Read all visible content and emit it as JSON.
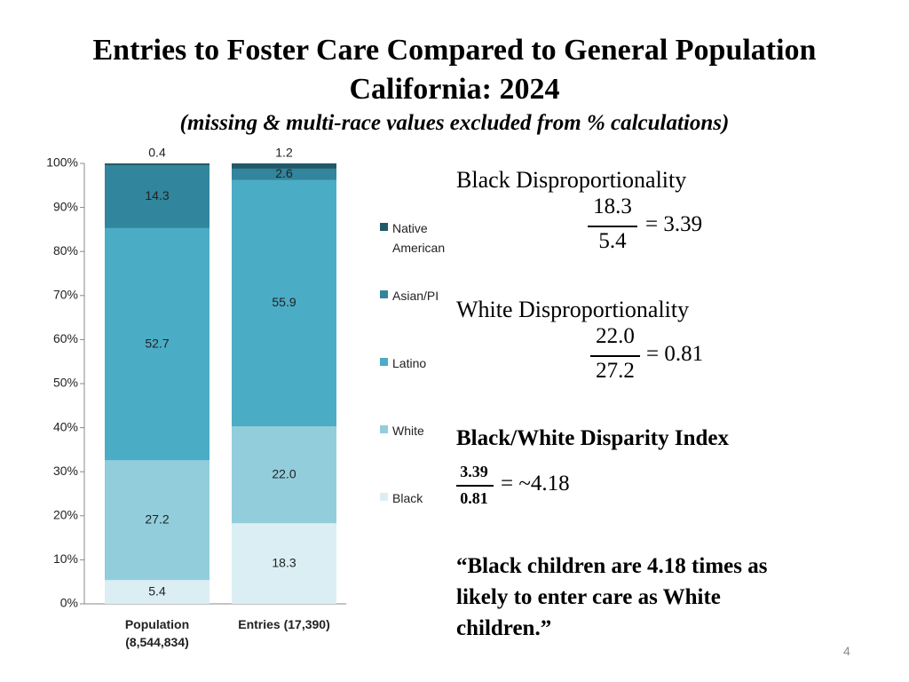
{
  "chart_data": {
    "type": "stacked_bar",
    "title": "Entries to Foster Care Compared to General Population",
    "subtitle": "California: 2024",
    "note": "(missing & multi-race values excluded from % calculations)",
    "categories": [
      "Population (8,544,834)",
      "Entries (17,390)"
    ],
    "series": [
      {
        "name": "Black",
        "color": "#dbeef4",
        "values": [
          5.4,
          18.3
        ]
      },
      {
        "name": "White",
        "color": "#92cddc",
        "values": [
          27.2,
          22.0
        ],
        "value_labels": [
          "27.2",
          "22.0"
        ]
      },
      {
        "name": "Latino",
        "color": "#4bacc6",
        "values": [
          52.7,
          55.9
        ]
      },
      {
        "name": "Asian/PI",
        "color": "#31859c",
        "values": [
          14.3,
          2.6
        ]
      },
      {
        "name": "Native American",
        "color": "#215968",
        "values": [
          0.4,
          1.2
        ]
      }
    ],
    "ylim": [
      0,
      100
    ],
    "yticks": [
      {
        "value": 0,
        "label": "0%"
      },
      {
        "value": 10,
        "label": "10%"
      },
      {
        "value": 20,
        "label": "20%"
      },
      {
        "value": 30,
        "label": "30%"
      },
      {
        "value": 40,
        "label": "40%"
      },
      {
        "value": 50,
        "label": "50%"
      },
      {
        "value": 60,
        "label": "60%"
      },
      {
        "value": 70,
        "label": "70%"
      },
      {
        "value": 80,
        "label": "80%"
      },
      {
        "value": 90,
        "label": "90%"
      },
      {
        "value": 100,
        "label": "100%"
      }
    ],
    "legend": "right"
  },
  "panel": {
    "black_heading": "Black Disproportionality",
    "black_num": "18.3",
    "black_den": "5.4",
    "black_result": "= 3.39",
    "white_heading": "White Disproportionality",
    "white_num": "22.0",
    "white_den": "27.2",
    "white_result": "= 0.81",
    "index_heading": "Black/White Disparity Index",
    "index_num": "3.39",
    "index_den": "0.81",
    "index_result": "= ~4.18",
    "quote": "“Black children are 4.18 times as likely to enter care as White children.”"
  },
  "page_number": "4"
}
